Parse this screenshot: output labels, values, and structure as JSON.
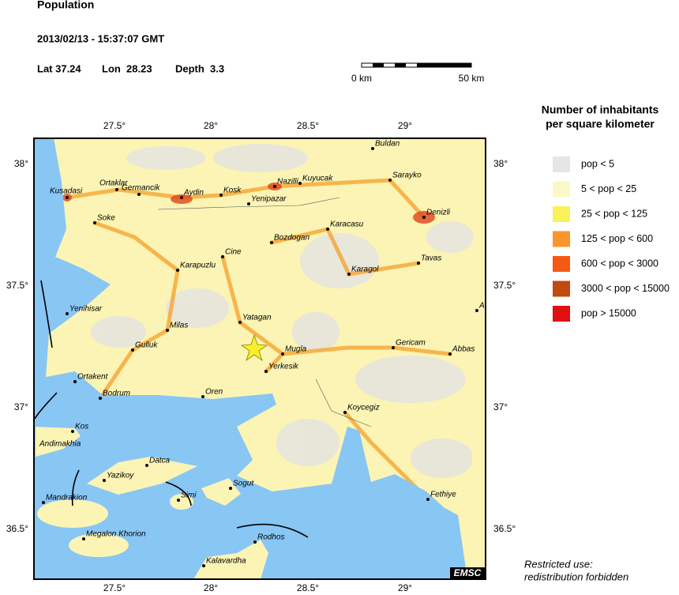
{
  "header": {
    "title": "Population",
    "datetime": "2013/02/13 - 15:37:07 GMT",
    "lat_label": "Lat 37.24",
    "lon_label": "Lon  28.23",
    "depth_label": "Depth  3.3"
  },
  "scale_bar": {
    "start": "0 km",
    "end": "50 km"
  },
  "axes": {
    "lon_ticks": [
      "27.5°",
      "28°",
      "28.5°",
      "29°"
    ],
    "lat_ticks": [
      "38°",
      "37.5°",
      "37°",
      "36.5°"
    ]
  },
  "towns": [
    "Buldan",
    "Sarayko",
    "Kusadasi",
    "Ortaklar",
    "Germancik",
    "Aydin",
    "Kosk",
    "Nazilli",
    "Kuyucak",
    "Yenipazar",
    "Denizli",
    "Soke",
    "Karacasu",
    "Bozdogan",
    "Cine",
    "Tavas",
    "Karapuzlu",
    "Karagol",
    "Yenihisar",
    "A",
    "Yatagan",
    "Milas",
    "Gulluk",
    "Mugla",
    "Gericam",
    "Abbas",
    "Yerkesik",
    "Ortakent",
    "Bodrum",
    "Oren",
    "Koycegiz",
    "Kos",
    "Andimakhia",
    "Datca",
    "Yazikoy",
    "Sogut",
    "Simi",
    "Mandrakion",
    "Fethiye",
    "Megalon Khorion",
    "Rodhos",
    "Kalavardha"
  ],
  "legend": {
    "title_line1": "Number of inhabitants",
    "title_line2": "per square kilometer",
    "entries": [
      {
        "label": "pop < 5",
        "color": "#e6e6e6"
      },
      {
        "label": "5 < pop < 25",
        "color": "#fbf8c8"
      },
      {
        "label": "25 < pop < 125",
        "color": "#f9f25a"
      },
      {
        "label": "125 < pop < 600",
        "color": "#f8962c"
      },
      {
        "label": "600 < pop < 3000",
        "color": "#f55a14"
      },
      {
        "label": "3000 < pop < 15000",
        "color": "#c04a10"
      },
      {
        "label": "pop > 15000",
        "color": "#e01010"
      }
    ]
  },
  "credit": "EMSC",
  "footnote": {
    "line1": "Restricted use:",
    "line2": "redistribution forbidden"
  }
}
